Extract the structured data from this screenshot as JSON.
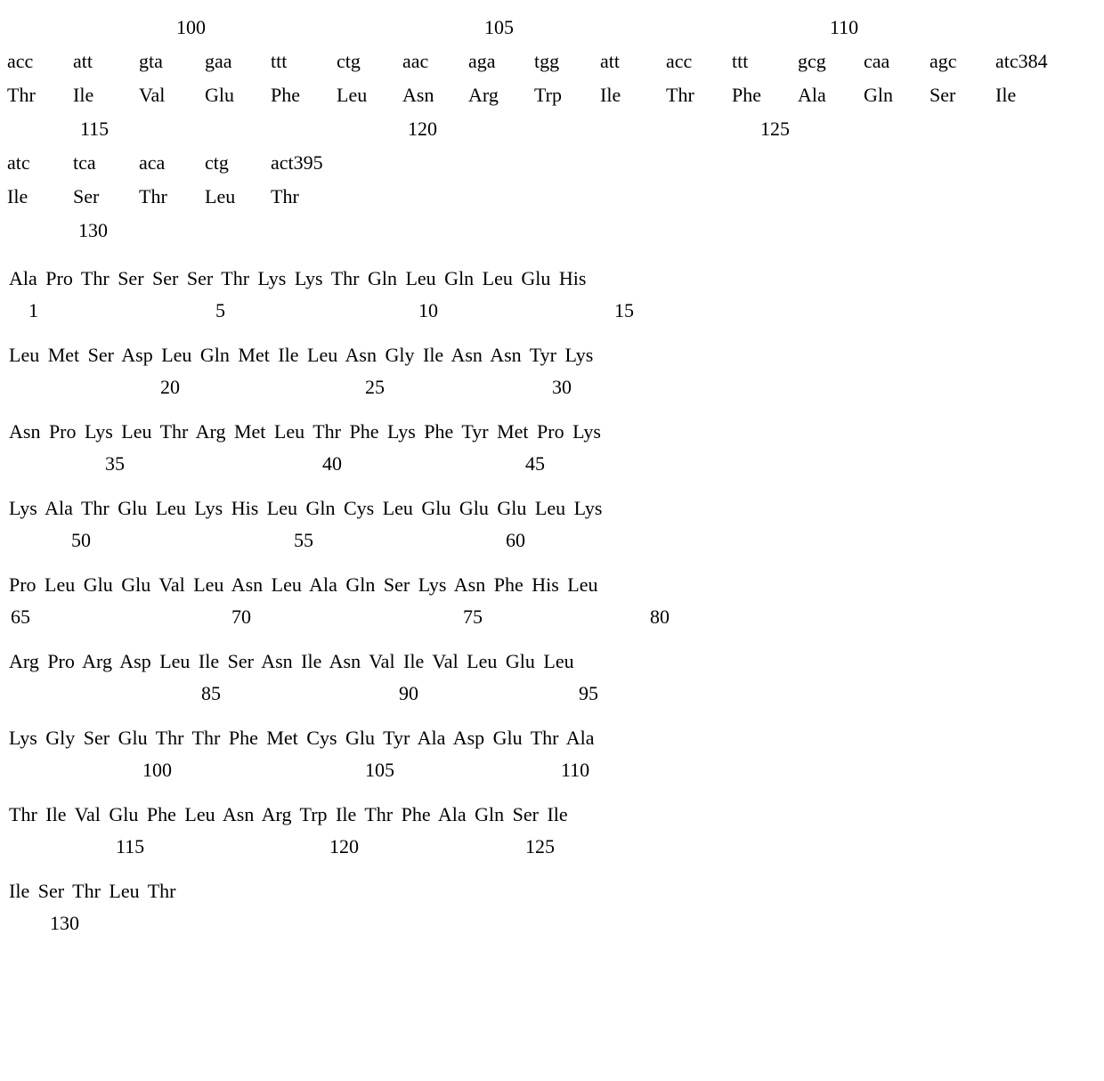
{
  "top_positions": {
    "p100": "100",
    "p105": "105",
    "p110": "110"
  },
  "codon_row1": {
    "c1": "acc",
    "c2": "att",
    "c3": "gta",
    "c4": "gaa",
    "c5": "ttt",
    "c6": "ctg",
    "c7": "aac",
    "c8": "aga",
    "c9": "tgg",
    "c10": "att",
    "c11": "acc",
    "c12": "ttt",
    "c13": "gcg",
    "c14": "caa",
    "c15": "agc",
    "c16": "atc384"
  },
  "aa_row1": {
    "a1": "Thr",
    "a2": "Ile",
    "a3": "Val",
    "a4": "Glu",
    "a5": "Phe",
    "a6": "Leu",
    "a7": "Asn",
    "a8": "Arg",
    "a9": "Trp",
    "a10": "Ile",
    "a11": "Thr",
    "a12": "Phe",
    "a13": "Ala",
    "a14": "Gln",
    "a15": "Ser",
    "a16": "Ile"
  },
  "mid_positions": {
    "p115": "115",
    "p120": "120",
    "p125": "125"
  },
  "codon_row2": {
    "c1": "atc",
    "c2": "tca",
    "c3": "aca",
    "c4": "ctg",
    "c5": "act395"
  },
  "aa_row2": {
    "a1": "Ile",
    "a2": "Ser",
    "a3": "Thr",
    "a4": "Leu",
    "a5": "Thr"
  },
  "pos130": "130",
  "protein": {
    "l1": "Ala Pro Thr Ser Ser Ser Thr Lys Lys Thr Gln Leu Gln Leu Glu His",
    "n1": {
      "a": "1",
      "b": "5",
      "c": "10",
      "d": "15"
    },
    "l2": "Leu Met Ser Asp Leu Gln Met Ile Leu Asn Gly Ile Asn Asn Tyr Lys",
    "n2": {
      "a": "20",
      "b": "25",
      "c": "30"
    },
    "l3": "Asn Pro Lys Leu Thr Arg Met Leu Thr Phe Lys Phe Tyr Met Pro Lys",
    "n3": {
      "a": "35",
      "b": "40",
      "c": "45"
    },
    "l4": "Lys Ala Thr Glu Leu Lys His Leu Gln Cys Leu Glu Glu Glu Leu Lys",
    "n4": {
      "a": "50",
      "b": "55",
      "c": "60"
    },
    "l5": "Pro Leu Glu Glu Val Leu Asn Leu Ala Gln Ser Lys Asn Phe His Leu",
    "n5": {
      "a": "65",
      "b": "70",
      "c": "75",
      "d": "80"
    },
    "l6": "Arg Pro Arg Asp Leu Ile Ser Asn Ile Asn Val Ile Val Leu Glu Leu",
    "n6": {
      "a": "85",
      "b": "90",
      "c": "95"
    },
    "l7": "Lys Gly Ser Glu Thr Thr Phe Met Cys Glu Tyr Ala Asp Glu Thr Ala",
    "n7": {
      "a": "100",
      "b": "105",
      "c": "110"
    },
    "l8": "Thr Ile Val Glu Phe Leu Asn Arg Trp Ile Thr Phe Ala Gln Ser Ile",
    "n8": {
      "a": "115",
      "b": "120",
      "c": "125"
    },
    "l9": "Ile Ser Thr Leu Thr",
    "n9": {
      "a": "130"
    }
  },
  "layout": {
    "num_offsets_A": {
      "a": 22,
      "b": 232,
      "c": 460,
      "d": 680
    },
    "num_offsets_B": {
      "a": 170,
      "b": 400,
      "c": 610
    },
    "num_offsets_C": {
      "a": 108,
      "b": 352,
      "c": 580
    },
    "num_offsets_D": {
      "a": 70,
      "b": 320,
      "c": 558
    },
    "num_offsets_E": {
      "a": 2,
      "b": 250,
      "c": 510,
      "d": 720
    },
    "num_offsets_F": {
      "a": 216,
      "b": 438,
      "c": 640
    },
    "num_offsets_G": {
      "a": 150,
      "b": 400,
      "c": 620
    },
    "num_offsets_H": {
      "a": 120,
      "b": 360,
      "c": 580
    },
    "num_offsets_I": {
      "a": 46
    }
  }
}
